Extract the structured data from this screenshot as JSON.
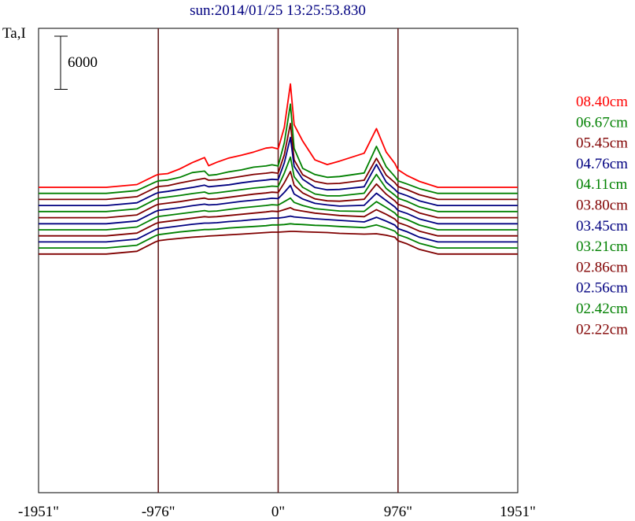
{
  "chart_data": {
    "type": "line",
    "title": "sun:2014/01/25 13:25:53.830",
    "ylabel": "Ta,I",
    "scale_bar_label": "6000",
    "scale_bar_value": 6000,
    "x_unit": "arcsec",
    "xlim": [
      -1951,
      1951
    ],
    "xticks": [
      -1951,
      -976,
      0,
      976,
      1951
    ],
    "xtick_labels": [
      "-1951\"",
      "-976\"",
      "0\"",
      "976\"",
      "1951\""
    ],
    "vlines": [
      -976,
      0,
      976
    ],
    "grid": false,
    "legend_position": "right",
    "series": [
      {
        "name": "08.40cm",
        "color": "#ff0000",
        "offset": 13600,
        "x": [
          -1951,
          -1400,
          -1150,
          -1000,
          -976,
          -900,
          -800,
          -700,
          -600,
          -566,
          -500,
          -400,
          -300,
          -200,
          -100,
          -50,
          0,
          50,
          100,
          130,
          200,
          300,
          400,
          500,
          700,
          800,
          880,
          950,
          976,
          1050,
          1150,
          1300,
          1500,
          1951
        ],
        "y": [
          0,
          0,
          700,
          3000,
          3300,
          3500,
          4700,
          6300,
          7600,
          5500,
          6400,
          7500,
          8200,
          9000,
          10000,
          10200,
          9800,
          15300,
          26400,
          16000,
          11800,
          7000,
          5800,
          6700,
          8700,
          15000,
          9000,
          6100,
          4500,
          3000,
          1500,
          0,
          0,
          0
        ]
      },
      {
        "name": "06.67cm",
        "color": "#008000",
        "offset": 12050,
        "x": [
          -1951,
          -1400,
          -1150,
          -1000,
          -976,
          -900,
          -800,
          -700,
          -600,
          -566,
          -500,
          -400,
          -300,
          -200,
          -100,
          -50,
          0,
          50,
          100,
          130,
          200,
          300,
          400,
          500,
          700,
          800,
          880,
          950,
          976,
          1050,
          1150,
          1300,
          1500,
          1951
        ],
        "y": [
          0,
          0,
          700,
          2900,
          3200,
          3400,
          4100,
          5300,
          5700,
          4600,
          4800,
          5500,
          6000,
          6700,
          7000,
          7300,
          7000,
          12900,
          22800,
          11500,
          6400,
          4800,
          4100,
          4300,
          5200,
          12000,
          6800,
          4300,
          3200,
          2400,
          1200,
          0,
          0,
          0
        ]
      },
      {
        "name": "05.45cm",
        "color": "#800000",
        "offset": 10500,
        "x": [
          -1951,
          -1400,
          -1150,
          -1000,
          -976,
          -900,
          -800,
          -700,
          -600,
          -566,
          -500,
          -400,
          -300,
          -200,
          -100,
          -50,
          0,
          50,
          100,
          130,
          200,
          300,
          400,
          500,
          700,
          800,
          880,
          950,
          976,
          1050,
          1150,
          1300,
          1500,
          1951
        ],
        "y": [
          0,
          0,
          700,
          3000,
          3300,
          3500,
          4200,
          4800,
          5400,
          4900,
          5000,
          5400,
          5900,
          6400,
          6700,
          6900,
          6700,
          11400,
          19400,
          10100,
          6300,
          4600,
          4000,
          4100,
          4900,
          10500,
          6200,
          4300,
          3300,
          2500,
          1200,
          0,
          0,
          0
        ]
      },
      {
        "name": "04.76cm",
        "color": "#000080",
        "offset": 8950,
        "x": [
          -1951,
          -1400,
          -1150,
          -1000,
          -976,
          -900,
          -800,
          -700,
          -600,
          -566,
          -500,
          -400,
          -300,
          -200,
          -100,
          -50,
          0,
          50,
          100,
          130,
          200,
          300,
          400,
          500,
          700,
          800,
          880,
          950,
          976,
          1050,
          1150,
          1300,
          1500,
          1951
        ],
        "y": [
          0,
          0,
          700,
          3000,
          3300,
          3600,
          4100,
          4600,
          5200,
          4800,
          5000,
          5300,
          5800,
          6200,
          6500,
          6700,
          6600,
          10900,
          17400,
          10000,
          6700,
          4600,
          4000,
          4100,
          4800,
          10500,
          6000,
          4100,
          3300,
          2500,
          1200,
          0,
          0,
          0
        ]
      },
      {
        "name": "04.11cm",
        "color": "#008000",
        "offset": 7400,
        "x": [
          -1951,
          -1400,
          -1150,
          -1000,
          -976,
          -900,
          -800,
          -700,
          -600,
          -566,
          -500,
          -400,
          -300,
          -200,
          -100,
          -50,
          0,
          50,
          100,
          130,
          200,
          300,
          400,
          500,
          700,
          800,
          880,
          950,
          976,
          1050,
          1150,
          1300,
          1500,
          1951
        ],
        "y": [
          0,
          0,
          700,
          3100,
          3400,
          3700,
          4100,
          4600,
          5000,
          4600,
          4800,
          5200,
          5600,
          6000,
          6300,
          6500,
          6400,
          9800,
          13900,
          8900,
          6200,
          4500,
          4000,
          4000,
          4700,
          9500,
          5900,
          4200,
          3400,
          2600,
          1200,
          0,
          0,
          0
        ]
      },
      {
        "name": "03.80cm",
        "color": "#800000",
        "offset": 5850,
        "x": [
          -1951,
          -1400,
          -1150,
          -1000,
          -976,
          -900,
          -800,
          -700,
          -600,
          -566,
          -500,
          -400,
          -300,
          -200,
          -100,
          -50,
          0,
          50,
          100,
          130,
          200,
          300,
          400,
          500,
          700,
          800,
          880,
          950,
          976,
          1050,
          1150,
          1300,
          1500,
          1951
        ],
        "y": [
          0,
          0,
          700,
          3100,
          3400,
          3700,
          4100,
          4600,
          5000,
          4700,
          4800,
          5200,
          5600,
          6000,
          6300,
          6500,
          6400,
          8900,
          11800,
          8300,
          6300,
          4800,
          4300,
          4200,
          4700,
          8600,
          6000,
          4300,
          3400,
          2600,
          1200,
          0,
          0,
          0
        ]
      },
      {
        "name": "03.45cm",
        "color": "#000080",
        "offset": 4300,
        "x": [
          -1951,
          -1400,
          -1150,
          -1000,
          -976,
          -900,
          -800,
          -700,
          -600,
          -566,
          -500,
          -400,
          -300,
          -200,
          -100,
          -50,
          0,
          50,
          100,
          130,
          200,
          300,
          400,
          500,
          700,
          800,
          880,
          950,
          976,
          1050,
          1150,
          1300,
          1500,
          1951
        ],
        "y": [
          0,
          0,
          700,
          3100,
          3400,
          3700,
          4100,
          4600,
          5000,
          4800,
          4900,
          5300,
          5700,
          6000,
          6300,
          6500,
          6400,
          8000,
          9800,
          7600,
          6300,
          5200,
          4800,
          4500,
          4700,
          7800,
          5900,
          4300,
          3400,
          2600,
          1200,
          0,
          0,
          0
        ]
      },
      {
        "name": "03.21cm",
        "color": "#008000",
        "offset": 2750,
        "x": [
          -1951,
          -1400,
          -1150,
          -1000,
          -976,
          -900,
          -800,
          -700,
          -600,
          -566,
          -500,
          -400,
          -300,
          -200,
          -100,
          -50,
          0,
          50,
          100,
          130,
          200,
          300,
          400,
          500,
          700,
          800,
          880,
          950,
          976,
          1050,
          1150,
          1300,
          1500,
          1951
        ],
        "y": [
          0,
          0,
          700,
          3100,
          3400,
          3700,
          4100,
          4500,
          4900,
          4700,
          4800,
          5200,
          5600,
          5900,
          6200,
          6400,
          6300,
          7200,
          8100,
          7000,
          6200,
          5400,
          5100,
          4800,
          4700,
          7200,
          5700,
          4300,
          3400,
          2600,
          1200,
          0,
          0,
          0
        ]
      },
      {
        "name": "02.86cm",
        "color": "#800000",
        "offset": 1200,
        "x": [
          -1951,
          -1400,
          -1150,
          -1000,
          -976,
          -900,
          -800,
          -700,
          -600,
          -566,
          -500,
          -400,
          -300,
          -200,
          -100,
          -50,
          0,
          50,
          100,
          130,
          200,
          300,
          400,
          500,
          700,
          800,
          880,
          950,
          976,
          1050,
          1150,
          1300,
          1500,
          1951
        ],
        "y": [
          0,
          0,
          700,
          3100,
          3400,
          3700,
          4100,
          4500,
          4900,
          4800,
          4900,
          5200,
          5500,
          5800,
          6100,
          6300,
          6200,
          6700,
          7200,
          6700,
          6300,
          5800,
          5500,
          5200,
          4900,
          6700,
          5500,
          4300,
          3400,
          2600,
          1200,
          0,
          0,
          0
        ]
      },
      {
        "name": "02.56cm",
        "color": "#000080",
        "offset": -350,
        "x": [
          -1951,
          -1400,
          -1150,
          -1000,
          -976,
          -900,
          -800,
          -700,
          -600,
          -566,
          -500,
          -400,
          -300,
          -200,
          -100,
          -50,
          0,
          50,
          100,
          130,
          200,
          300,
          400,
          500,
          700,
          800,
          880,
          950,
          976,
          1050,
          1150,
          1300,
          1500,
          1951
        ],
        "y": [
          0,
          0,
          700,
          3100,
          3400,
          3700,
          4100,
          4500,
          4800,
          4800,
          4900,
          5200,
          5400,
          5700,
          5900,
          6100,
          6100,
          6300,
          6600,
          6400,
          6200,
          5900,
          5700,
          5500,
          5100,
          6300,
          5300,
          4300,
          3400,
          2600,
          1200,
          0,
          0,
          0
        ]
      },
      {
        "name": "02.42cm",
        "color": "#008000",
        "offset": -1900,
        "x": [
          -1951,
          -1400,
          -1150,
          -1000,
          -976,
          -900,
          -800,
          -700,
          -600,
          -566,
          -500,
          -400,
          -300,
          -200,
          -100,
          -50,
          0,
          50,
          100,
          130,
          200,
          300,
          400,
          500,
          700,
          800,
          880,
          950,
          976,
          1050,
          1150,
          1300,
          1500,
          1951
        ],
        "y": [
          0,
          0,
          700,
          3100,
          3400,
          3700,
          4100,
          4400,
          4700,
          4700,
          4800,
          5100,
          5300,
          5500,
          5700,
          5900,
          5900,
          6000,
          6200,
          6100,
          6000,
          5800,
          5700,
          5500,
          5200,
          5900,
          5100,
          4300,
          3400,
          2600,
          1200,
          0,
          0,
          0
        ]
      },
      {
        "name": "02.22cm",
        "color": "#800000",
        "offset": -3450,
        "x": [
          -1951,
          -1400,
          -1150,
          -1000,
          -976,
          -900,
          -800,
          -700,
          -600,
          -566,
          -500,
          -400,
          -300,
          -200,
          -100,
          -50,
          0,
          50,
          100,
          130,
          200,
          300,
          400,
          500,
          700,
          800,
          880,
          950,
          976,
          1050,
          1150,
          1300,
          1500,
          1951
        ],
        "y": [
          0,
          0,
          700,
          3100,
          3400,
          3700,
          4000,
          4300,
          4500,
          4600,
          4700,
          4900,
          5100,
          5300,
          5500,
          5600,
          5600,
          5700,
          5800,
          5800,
          5700,
          5600,
          5500,
          5300,
          5100,
          5200,
          4800,
          4300,
          3400,
          2600,
          1200,
          0,
          0,
          0
        ]
      }
    ]
  }
}
